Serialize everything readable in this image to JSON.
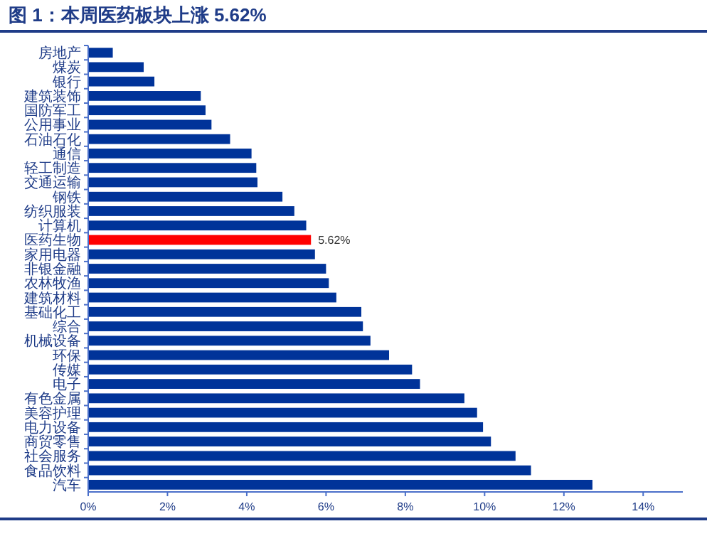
{
  "chart_data": {
    "type": "bar",
    "orientation": "horizontal",
    "title": "图 1：本周医药板块上涨 5.62%",
    "categories": [
      "房地产",
      "煤炭",
      "银行",
      "建筑装饰",
      "国防军工",
      "公用事业",
      "石油石化",
      "通信",
      "轻工制造",
      "交通运输",
      "钢铁",
      "纺织服装",
      "计算机",
      "医药生物",
      "家用电器",
      "非银金融",
      "农林牧渔",
      "建筑材料",
      "基础化工",
      "综合",
      "机械设备",
      "环保",
      "传媒",
      "电子",
      "有色金属",
      "美容护理",
      "电力设备",
      "商贸零售",
      "社会服务",
      "食品饮料",
      "汽车"
    ],
    "values": [
      0.62,
      1.4,
      1.67,
      2.84,
      2.96,
      3.11,
      3.58,
      4.12,
      4.24,
      4.27,
      4.9,
      5.2,
      5.5,
      5.62,
      5.72,
      6.0,
      6.07,
      6.26,
      6.89,
      6.93,
      7.12,
      7.59,
      8.17,
      8.37,
      9.49,
      9.81,
      9.96,
      10.16,
      10.78,
      11.17,
      12.72
    ],
    "colors": [
      "#003399",
      "#003399",
      "#003399",
      "#003399",
      "#003399",
      "#003399",
      "#003399",
      "#003399",
      "#003399",
      "#003399",
      "#003399",
      "#003399",
      "#003399",
      "#ff0000",
      "#003399",
      "#003399",
      "#003399",
      "#003399",
      "#003399",
      "#003399",
      "#003399",
      "#003399",
      "#003399",
      "#003399",
      "#003399",
      "#003399",
      "#003399",
      "#003399",
      "#003399",
      "#003399",
      "#003399"
    ],
    "value_labels": [
      null,
      null,
      null,
      null,
      null,
      null,
      null,
      null,
      null,
      null,
      null,
      null,
      null,
      "5.62%",
      null,
      null,
      null,
      null,
      null,
      null,
      null,
      null,
      null,
      null,
      null,
      null,
      null,
      null,
      null,
      null,
      null
    ],
    "xlim": [
      0,
      15
    ],
    "xticks": [
      {
        "value": 0,
        "label": "0%"
      },
      {
        "value": 2,
        "label": "2%"
      },
      {
        "value": 4,
        "label": "4%"
      },
      {
        "value": 6,
        "label": "6%"
      },
      {
        "value": 8,
        "label": "8%"
      },
      {
        "value": 10,
        "label": "10%"
      },
      {
        "value": 12,
        "label": "12%"
      },
      {
        "value": 14,
        "label": "14%"
      }
    ]
  }
}
